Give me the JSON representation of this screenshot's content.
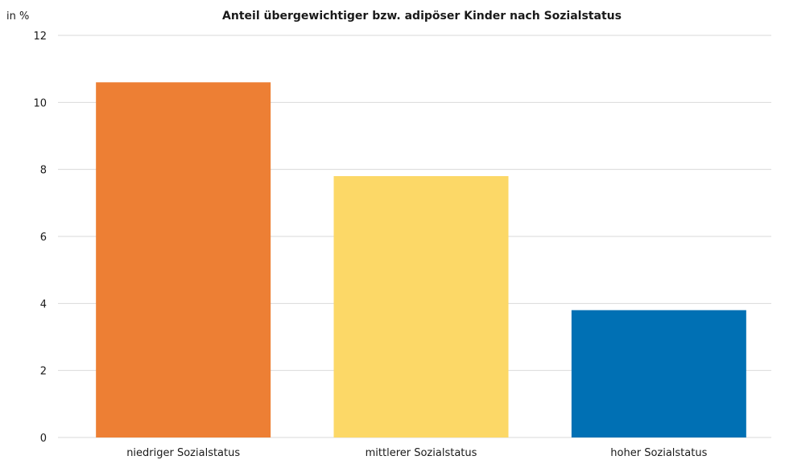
{
  "chart_data": {
    "type": "bar",
    "title": "Anteil übergewichtiger bzw. adipöser Kinder nach Sozialstatus",
    "ylabel": "in %",
    "xlabel": "",
    "categories": [
      "niedriger Sozialstatus",
      "mittlerer Sozialstatus",
      "hoher Sozialstatus"
    ],
    "values": [
      10.6,
      7.8,
      3.8
    ],
    "colors": [
      "#ED7F34",
      "#FCD867",
      "#0070B4"
    ],
    "ylim": [
      0,
      12
    ],
    "yticks": [
      0,
      2,
      4,
      6,
      8,
      10,
      12
    ],
    "grid": true,
    "legend": "none"
  }
}
